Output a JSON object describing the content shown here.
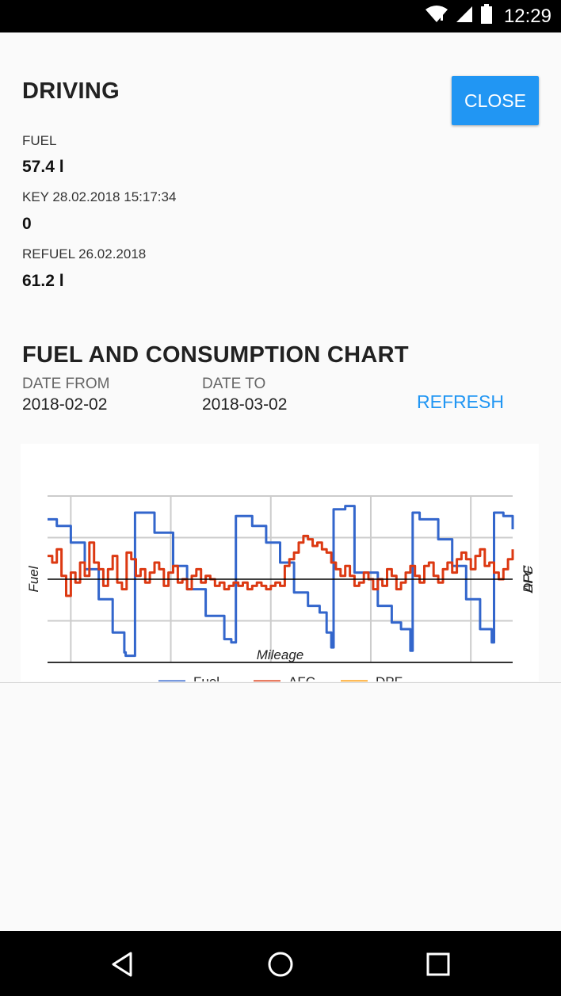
{
  "status_bar": {
    "time": "12:29",
    "icons": [
      "wifi-icon",
      "signal-icon",
      "battery-icon"
    ]
  },
  "driving": {
    "title": "DRIVING",
    "close_label": "CLOSE",
    "fuel_label": "FUEL",
    "fuel_value": "57.4 l",
    "key_label": "KEY 28.02.2018 15:17:34",
    "key_value": "0",
    "refuel_label": "REFUEL 26.02.2018",
    "refuel_value": "61.2 l"
  },
  "chart_section": {
    "title": "FUEL AND CONSUMPTION CHART",
    "date_from_label": "DATE FROM",
    "date_from_value": "2018-02-02",
    "date_to_label": "DATE TO",
    "date_to_value": "2018-03-02",
    "refresh_label": "REFRESH"
  },
  "chart_data": {
    "type": "line",
    "xlabel": "Mileage",
    "ylabel": "Fuel",
    "right_axis_labels": [
      "AFC",
      "DPF"
    ],
    "legend_position": "bottom",
    "grid": true,
    "colors": {
      "Fuel": "#3366cc",
      "AFC": "#dc3912",
      "DPF": "#ff9900"
    },
    "series": [
      {
        "name": "Fuel",
        "points": [
          [
            0,
            0.86
          ],
          [
            0.02,
            0.82
          ],
          [
            0.05,
            0.72
          ],
          [
            0.08,
            0.56
          ],
          [
            0.11,
            0.38
          ],
          [
            0.14,
            0.18
          ],
          [
            0.165,
            0.06
          ],
          [
            0.168,
            0.04
          ],
          [
            0.188,
            0.9
          ],
          [
            0.23,
            0.78
          ],
          [
            0.27,
            0.58
          ],
          [
            0.3,
            0.44
          ],
          [
            0.34,
            0.28
          ],
          [
            0.38,
            0.14
          ],
          [
            0.395,
            0.12
          ],
          [
            0.405,
            0.88
          ],
          [
            0.44,
            0.82
          ],
          [
            0.47,
            0.72
          ],
          [
            0.5,
            0.6
          ],
          [
            0.53,
            0.42
          ],
          [
            0.56,
            0.34
          ],
          [
            0.58,
            0.34
          ],
          [
            0.585,
            0.3
          ],
          [
            0.6,
            0.18
          ],
          [
            0.61,
            0.09
          ],
          [
            0.615,
            0.92
          ],
          [
            0.64,
            0.94
          ],
          [
            0.66,
            0.54
          ],
          [
            0.7,
            0.54
          ],
          [
            0.71,
            0.34
          ],
          [
            0.74,
            0.24
          ],
          [
            0.76,
            0.2
          ],
          [
            0.78,
            0.07
          ],
          [
            0.785,
            0.9
          ],
          [
            0.8,
            0.86
          ],
          [
            0.84,
            0.74
          ],
          [
            0.87,
            0.58
          ],
          [
            0.9,
            0.38
          ],
          [
            0.93,
            0.2
          ],
          [
            0.955,
            0.12
          ],
          [
            0.96,
            0.9
          ],
          [
            0.98,
            0.88
          ],
          [
            1,
            0.8
          ]
        ]
      },
      {
        "name": "AFC",
        "points": [
          [
            0,
            0.64
          ],
          [
            0.01,
            0.6
          ],
          [
            0.02,
            0.68
          ],
          [
            0.03,
            0.52
          ],
          [
            0.04,
            0.4
          ],
          [
            0.05,
            0.54
          ],
          [
            0.06,
            0.48
          ],
          [
            0.07,
            0.6
          ],
          [
            0.08,
            0.52
          ],
          [
            0.09,
            0.72
          ],
          [
            0.1,
            0.6
          ],
          [
            0.11,
            0.56
          ],
          [
            0.12,
            0.46
          ],
          [
            0.13,
            0.56
          ],
          [
            0.14,
            0.64
          ],
          [
            0.15,
            0.48
          ],
          [
            0.16,
            0.44
          ],
          [
            0.17,
            0.66
          ],
          [
            0.18,
            0.62
          ],
          [
            0.19,
            0.52
          ],
          [
            0.2,
            0.56
          ],
          [
            0.21,
            0.48
          ],
          [
            0.22,
            0.54
          ],
          [
            0.23,
            0.6
          ],
          [
            0.24,
            0.56
          ],
          [
            0.25,
            0.46
          ],
          [
            0.26,
            0.54
          ],
          [
            0.27,
            0.58
          ],
          [
            0.28,
            0.48
          ],
          [
            0.29,
            0.5
          ],
          [
            0.3,
            0.44
          ],
          [
            0.31,
            0.52
          ],
          [
            0.32,
            0.56
          ],
          [
            0.33,
            0.48
          ],
          [
            0.34,
            0.52
          ],
          [
            0.35,
            0.5
          ],
          [
            0.36,
            0.46
          ],
          [
            0.37,
            0.48
          ],
          [
            0.38,
            0.44
          ],
          [
            0.39,
            0.46
          ],
          [
            0.4,
            0.48
          ],
          [
            0.41,
            0.46
          ],
          [
            0.42,
            0.48
          ],
          [
            0.43,
            0.44
          ],
          [
            0.44,
            0.46
          ],
          [
            0.45,
            0.48
          ],
          [
            0.46,
            0.46
          ],
          [
            0.47,
            0.44
          ],
          [
            0.48,
            0.46
          ],
          [
            0.49,
            0.48
          ],
          [
            0.5,
            0.46
          ],
          [
            0.51,
            0.58
          ],
          [
            0.52,
            0.62
          ],
          [
            0.53,
            0.66
          ],
          [
            0.54,
            0.72
          ],
          [
            0.55,
            0.76
          ],
          [
            0.56,
            0.74
          ],
          [
            0.57,
            0.7
          ],
          [
            0.58,
            0.72
          ],
          [
            0.59,
            0.68
          ],
          [
            0.6,
            0.66
          ],
          [
            0.61,
            0.6
          ],
          [
            0.62,
            0.56
          ],
          [
            0.63,
            0.52
          ],
          [
            0.64,
            0.58
          ],
          [
            0.65,
            0.52
          ],
          [
            0.66,
            0.46
          ],
          [
            0.67,
            0.48
          ],
          [
            0.68,
            0.54
          ],
          [
            0.69,
            0.5
          ],
          [
            0.7,
            0.44
          ],
          [
            0.71,
            0.5
          ],
          [
            0.72,
            0.46
          ],
          [
            0.73,
            0.56
          ],
          [
            0.74,
            0.52
          ],
          [
            0.75,
            0.44
          ],
          [
            0.76,
            0.48
          ],
          [
            0.77,
            0.54
          ],
          [
            0.78,
            0.58
          ],
          [
            0.79,
            0.52
          ],
          [
            0.8,
            0.48
          ],
          [
            0.81,
            0.58
          ],
          [
            0.82,
            0.6
          ],
          [
            0.83,
            0.52
          ],
          [
            0.84,
            0.48
          ],
          [
            0.85,
            0.56
          ],
          [
            0.86,
            0.6
          ],
          [
            0.87,
            0.54
          ],
          [
            0.88,
            0.62
          ],
          [
            0.89,
            0.66
          ],
          [
            0.9,
            0.62
          ],
          [
            0.91,
            0.56
          ],
          [
            0.92,
            0.64
          ],
          [
            0.93,
            0.68
          ],
          [
            0.94,
            0.58
          ],
          [
            0.95,
            0.6
          ],
          [
            0.96,
            0.54
          ],
          [
            0.97,
            0.5
          ],
          [
            0.98,
            0.56
          ],
          [
            0.99,
            0.62
          ],
          [
            1,
            0.68
          ]
        ]
      },
      {
        "name": "DPF",
        "points": []
      }
    ]
  },
  "nav_bar": {
    "buttons": [
      "back-icon",
      "home-icon",
      "recents-icon"
    ]
  }
}
